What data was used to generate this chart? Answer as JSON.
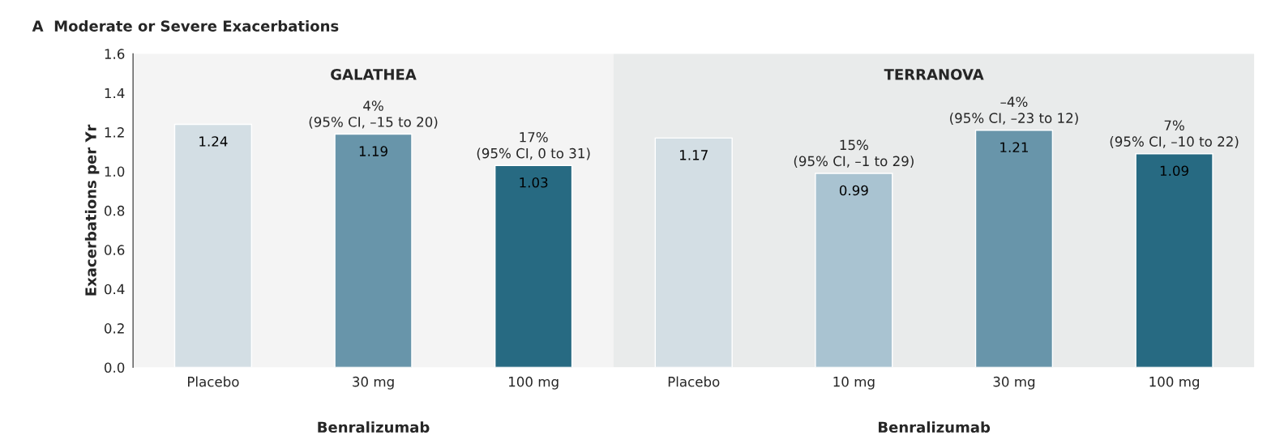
{
  "chart_data": {
    "type": "bar",
    "title": "A  Moderate or Severe Exacerbations",
    "ylabel": "Exacerbations per Yr",
    "categories": [
      "Placebo",
      "30 mg",
      "100 mg",
      "Placebo",
      "10 mg",
      "30 mg",
      "100 mg"
    ],
    "values": [
      1.24,
      1.19,
      1.03,
      1.17,
      0.99,
      1.21,
      1.09
    ],
    "colors": [
      "#d3dee4",
      "#6895aa",
      "#276a82",
      "#d3dee4",
      "#a9c3d1",
      "#6895aa",
      "#276a82"
    ],
    "data_labels": true,
    "ylim": [
      0,
      1.6
    ],
    "yticks": [
      {
        "value": 0,
        "label": "0.0"
      },
      {
        "value": 0.2,
        "label": "0.2"
      },
      {
        "value": 0.4,
        "label": "0.4"
      },
      {
        "value": 0.6,
        "label": "0.6"
      },
      {
        "value": 0.8,
        "label": "0.8"
      },
      {
        "value": 1.0,
        "label": "1.0"
      },
      {
        "value": 1.2,
        "label": "1.2"
      },
      {
        "value": 1.4,
        "label": "1.4"
      },
      {
        "value": 1.6,
        "label": "1.6"
      }
    ],
    "annotations": [
      "4%\n(95% CI, –15 to 20)",
      "17%\n(95% CI, 0 to 31)",
      "15%\n(95% CI, –1 to 29)",
      "–4%\n(95% CI, –23 to 12)",
      "7%\n(95% CI, –10 to 22)",
      "GALATHEA",
      "TERRANOVA",
      "Benralizumab",
      "Benralizumab"
    ]
  }
}
